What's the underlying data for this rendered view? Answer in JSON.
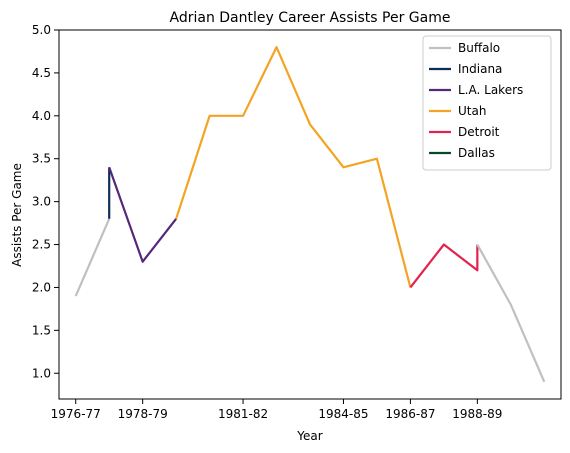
{
  "chart_data": {
    "type": "line",
    "title": "Adrian Dantley Career Assists Per Game",
    "xlabel": "Year",
    "ylabel": "Assists Per Game",
    "x_categories": [
      "1976-77",
      "1977-78",
      "1978-79",
      "1979-80",
      "1980-81",
      "1981-82",
      "1982-83",
      "1983-84",
      "1984-85",
      "1985-86",
      "1986-87",
      "1987-88",
      "1988-89",
      "1989-90",
      "1990-91"
    ],
    "x_tick_labels": [
      "1976-77",
      "1978-79",
      "1981-82",
      "1984-85",
      "1986-87",
      "1988-89"
    ],
    "ylim": [
      0.7,
      5.0
    ],
    "y_ticks": [
      "1.0",
      "1.5",
      "2.0",
      "2.5",
      "3.0",
      "3.5",
      "4.0",
      "4.5",
      "5.0"
    ],
    "grid": false,
    "legend_position": "top-right",
    "series": [
      {
        "name": "Buffalo",
        "color": "#c0c0c0",
        "points": [
          [
            "1976-77",
            1.9
          ],
          [
            "1977-78",
            2.8
          ]
        ]
      },
      {
        "name": "Indiana",
        "color": "#0c2f5a",
        "points": [
          [
            "1977-78",
            2.8
          ],
          [
            "1977-78",
            3.4
          ]
        ]
      },
      {
        "name": "L.A. Lakers",
        "color": "#55287a",
        "points": [
          [
            "1977-78",
            3.4
          ],
          [
            "1978-79",
            2.3
          ],
          [
            "1979-80",
            2.8
          ]
        ]
      },
      {
        "name": "Utah",
        "color": "#f4a324",
        "points": [
          [
            "1979-80",
            2.8
          ],
          [
            "1980-81",
            4.0
          ],
          [
            "1981-82",
            4.0
          ],
          [
            "1982-83",
            4.8
          ],
          [
            "1983-84",
            3.9
          ],
          [
            "1984-85",
            3.4
          ],
          [
            "1985-86",
            3.5
          ],
          [
            "1986-87",
            2.0
          ]
        ]
      },
      {
        "name": "Detroit",
        "color": "#e2234f",
        "points": [
          [
            "1986-87",
            2.0
          ],
          [
            "1987-88",
            2.5
          ],
          [
            "1988-89",
            2.2
          ],
          [
            "1988-89",
            2.5
          ]
        ]
      },
      {
        "name": "Dallas",
        "color": "#034c21",
        "points": []
      },
      {
        "name": "",
        "color": "#c0c0c0",
        "points": [
          [
            "1988-89",
            2.5
          ],
          [
            "1989-90",
            1.8
          ],
          [
            "1990-91",
            0.9
          ]
        ]
      }
    ]
  }
}
